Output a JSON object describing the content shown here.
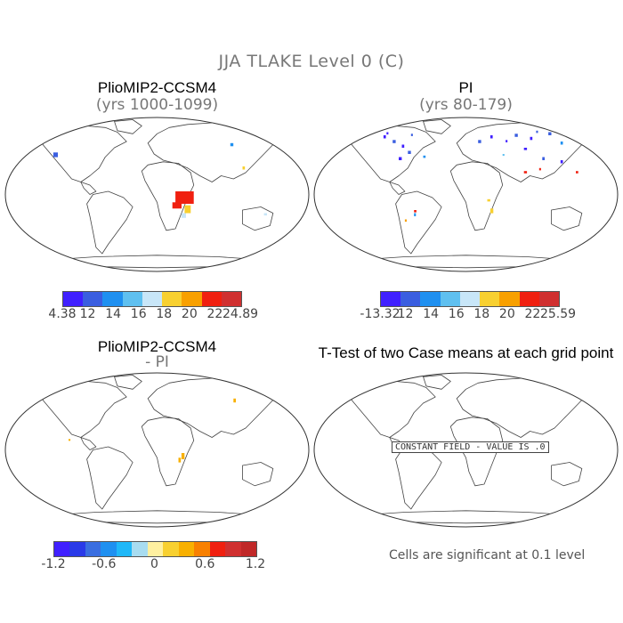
{
  "figure": {
    "title": "JJA TLAKE Level 0 (C)",
    "footnote": "Cells are significant at 0.1 level"
  },
  "panels": {
    "top_left": {
      "title": "PlioMIP2-CCSM4",
      "subtitle": "(yrs 1000-1099)",
      "colors": [
        "#4020ff",
        "#3a5ee0",
        "#1f90f0",
        "#5fc0f0",
        "#c8e6f8",
        "#f8d030",
        "#f8a000",
        "#f02010",
        "#d03030"
      ],
      "labels": [
        "4.38",
        "12",
        "14",
        "16",
        "18",
        "20",
        "22",
        "24.89"
      ]
    },
    "top_right": {
      "title": "PI",
      "subtitle": "(yrs 80-179)",
      "colors": [
        "#4020ff",
        "#3a5ee0",
        "#1f90f0",
        "#5fc0f0",
        "#c8e6f8",
        "#f8d030",
        "#f8a000",
        "#f02010",
        "#d03030"
      ],
      "labels": [
        "-13.32",
        "12",
        "14",
        "16",
        "18",
        "20",
        "22",
        "25.59"
      ]
    },
    "bottom_left": {
      "title": "PlioMIP2-CCSM4",
      "subtitle": "- PI",
      "colors": [
        "#4020ff",
        "#2a3ae8",
        "#3a6ee0",
        "#1f90f0",
        "#20b8f8",
        "#a8dcf0",
        "#fff0a0",
        "#f8d030",
        "#f8b000",
        "#f88000",
        "#f02010",
        "#d03030",
        "#c02828"
      ],
      "labels": [
        "-1.2",
        "-0.6",
        "0",
        "0.6",
        "1.2"
      ]
    },
    "bottom_right": {
      "title": "T-Test of two Case means at each grid point",
      "message": "CONSTANT FIELD - VALUE IS .0"
    }
  }
}
